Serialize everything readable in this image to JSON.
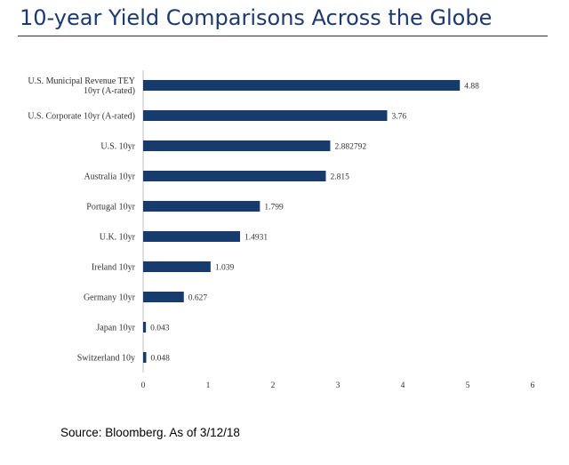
{
  "header": {
    "title": "10-year Yield Comparisons Across the Globe"
  },
  "footer": {
    "source": "Source: Bloomberg. As of 3/12/18"
  },
  "colors": {
    "title": "#1d3a6e",
    "bar": "#163b6c",
    "rule": "#333333"
  },
  "chart_data": {
    "type": "bar",
    "orientation": "horizontal",
    "title": "",
    "xlabel": "",
    "ylabel": "",
    "xlim": [
      0,
      6
    ],
    "x_ticks": [
      "0",
      "1",
      "2",
      "3",
      "4",
      "5",
      "6"
    ],
    "grid": false,
    "legend": "none",
    "categories": [
      [
        "U.S. Municipal Revenue TEY",
        "10yr (A-rated)"
      ],
      [
        "U.S. Corporate 10yr (A-rated)"
      ],
      [
        "U.S. 10yr"
      ],
      [
        "Australia 10yr"
      ],
      [
        "Portugal 10yr"
      ],
      [
        "U.K. 10yr"
      ],
      [
        "Ireland 10yr"
      ],
      [
        "Germany 10yr"
      ],
      [
        "Japan 10yr"
      ],
      [
        "Switzerland 10y"
      ]
    ],
    "values": [
      4.88,
      3.76,
      2.882792,
      2.815,
      1.799,
      1.4931,
      1.039,
      0.627,
      0.043,
      0.048
    ],
    "value_labels": [
      "4.88",
      "3.76",
      "2.882792",
      "2.815",
      "1.799",
      "1.4931",
      "1.039",
      "0.627",
      "0.043",
      "0.048"
    ]
  }
}
